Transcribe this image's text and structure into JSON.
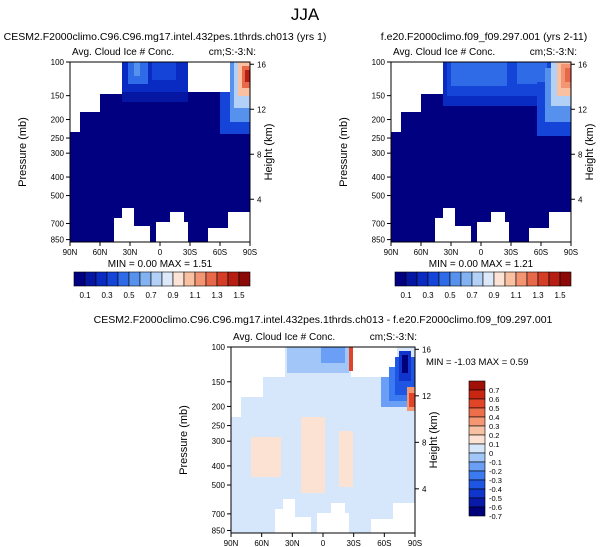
{
  "figure": {
    "title": "JJA"
  },
  "colors": {
    "ctrl_levels": [
      "#000080",
      "#0516a3",
      "#0a2bc2",
      "#1545d8",
      "#2f6be6",
      "#5691ee",
      "#83b2f3",
      "#b3d0f7",
      "#dde9f8",
      "#fce3d5",
      "#f9c1a2",
      "#f39573",
      "#e8694a",
      "#d43d26",
      "#b71e13",
      "#8b0a07"
    ],
    "diff_levels": [
      "#00007a",
      "#0a1aa8",
      "#1035cc",
      "#1e55e3",
      "#3b7af0",
      "#6a9ff5",
      "#a3c6f8",
      "#d6e6fb",
      "#fbe2d3",
      "#f7c2a4",
      "#f39873",
      "#ee6d4a",
      "#e24428",
      "#c92612",
      "#a01008"
    ]
  },
  "panels": {
    "a": {
      "title": "CESM2.F2000climo.C96.C96.mg17.intel.432pes.1thrds.ch013 (yrs 1)",
      "left_label": "Avg. Cloud Ice # Conc.",
      "right_label": "cm;S:-3:N:",
      "minmax": "MIN =  0.00  MAX =  1.51"
    },
    "b": {
      "title": "f.e20.F2000climo.f09_f09.297.001 (yrs 2-11)",
      "left_label": "Avg. Cloud Ice # Conc.",
      "right_label": "cm;S:-3:N:",
      "minmax": "MIN =  0.00  MAX =  1.21"
    },
    "c": {
      "title": "CESM2.F2000climo.C96.C96.mg17.intel.432pes.1thrds.ch013 - f.e20.F2000climo.f09_f09.297.001",
      "left_label": "Avg. Cloud Ice # Conc.",
      "right_label": "cm;S:-3:N:",
      "minmax": "MIN = -1.03  MAX =  0.59"
    }
  },
  "chart_data": [
    {
      "type": "heatmap",
      "id": "a",
      "title": "CESM2.F2000climo.C96.C96.mg17.intel.432pes.1thrds.ch013 (yrs 1)",
      "variable": "Avg. Cloud Ice # Conc.",
      "units": "cm;S:-3:N:",
      "xlabel": "",
      "ylabel": "Pressure (mb)",
      "ylabel_right": "Height (km)",
      "x_ticks": [
        "90N",
        "60N",
        "30N",
        "0",
        "30S",
        "60S",
        "90S"
      ],
      "y_ticks": [
        "100",
        "150",
        "200",
        "250",
        "300",
        "400",
        "500",
        "700",
        "850"
      ],
      "y_ticks_right": [
        "16",
        "12",
        "8",
        "4"
      ],
      "xlim": [
        90,
        -90
      ],
      "ylim": [
        875,
        100
      ],
      "min": 0.0,
      "max": 1.51
    },
    {
      "type": "heatmap",
      "id": "b",
      "title": "f.e20.F2000climo.f09_f09.297.001 (yrs 2-11)",
      "variable": "Avg. Cloud Ice # Conc.",
      "units": "cm;S:-3:N:",
      "xlabel": "",
      "ylabel": "Pressure (mb)",
      "ylabel_right": "Height (km)",
      "x_ticks": [
        "90N",
        "60N",
        "30N",
        "0",
        "30S",
        "60S",
        "90S"
      ],
      "y_ticks": [
        "100",
        "150",
        "200",
        "250",
        "300",
        "400",
        "500",
        "700",
        "850"
      ],
      "y_ticks_right": [
        "16",
        "12",
        "8",
        "4"
      ],
      "xlim": [
        90,
        -90
      ],
      "ylim": [
        875,
        100
      ],
      "min": 0.0,
      "max": 1.21
    },
    {
      "type": "heatmap",
      "id": "c",
      "title": "CESM2.F2000climo.C96.C96.mg17.intel.432pes.1thrds.ch013 - f.e20.F2000climo.f09_f09.297.001",
      "variable": "Avg. Cloud Ice # Conc.",
      "units": "cm;S:-3:N:",
      "xlabel": "",
      "ylabel": "Pressure (mb)",
      "ylabel_right": "Height (km)",
      "x_ticks": [
        "90N",
        "60N",
        "30N",
        "0",
        "30S",
        "60S",
        "90S"
      ],
      "y_ticks": [
        "100",
        "150",
        "200",
        "250",
        "300",
        "400",
        "500",
        "700",
        "850"
      ],
      "y_ticks_right": [
        "16",
        "12",
        "8",
        "4"
      ],
      "xlim": [
        90,
        -90
      ],
      "ylim": [
        875,
        100
      ],
      "min": -1.03,
      "max": 0.59
    },
    {
      "type": "colorbar",
      "id": "ctrl_colorbar",
      "orientation": "horizontal",
      "labels": [
        "0.1",
        "0.3",
        "0.5",
        "0.7",
        "0.9",
        "1.1",
        "1.3",
        "1.5"
      ]
    },
    {
      "type": "colorbar",
      "id": "diff_colorbar",
      "orientation": "vertical",
      "labels": [
        "0.7",
        "0.6",
        "0.5",
        "0.4",
        "0.3",
        "0.2",
        "0.1",
        "0",
        "-0.1",
        "-0.2",
        "-0.3",
        "-0.4",
        "-0.5",
        "-0.6",
        "-0.7"
      ]
    }
  ]
}
